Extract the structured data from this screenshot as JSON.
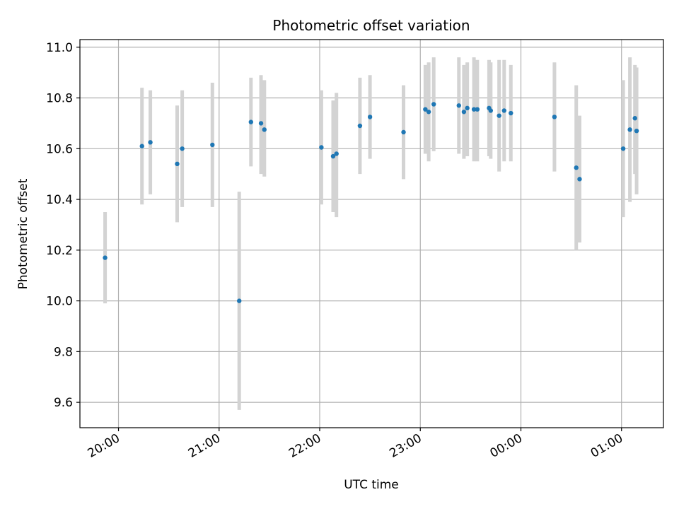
{
  "chart_data": {
    "type": "scatter",
    "title": "Photometric offset variation",
    "xlabel": "UTC time",
    "ylabel": "Photometric offset",
    "x_axis_kind": "time",
    "xlim": [
      "19:37",
      "01:25"
    ],
    "ylim": [
      9.5,
      11.03
    ],
    "x_ticks": [
      "20:00",
      "21:00",
      "22:00",
      "23:00",
      "00:00",
      "01:00"
    ],
    "y_ticks": [
      "9.6",
      "9.8",
      "10.0",
      "10.2",
      "10.4",
      "10.6",
      "10.8",
      "11.0"
    ],
    "grid": true,
    "legend": "none",
    "colors": {
      "point": "#1f77b4",
      "error_bar": "#d3d3d3",
      "grid": "#b0b0b0"
    },
    "points": [
      {
        "time": "19:52",
        "y": 10.17,
        "ylow": 9.99,
        "yhigh": 10.35
      },
      {
        "time": "20:14",
        "y": 10.61,
        "ylow": 10.38,
        "yhigh": 10.84
      },
      {
        "time": "20:19",
        "y": 10.625,
        "ylow": 10.42,
        "yhigh": 10.83
      },
      {
        "time": "20:35",
        "y": 10.54,
        "ylow": 10.31,
        "yhigh": 10.77
      },
      {
        "time": "20:38",
        "y": 10.6,
        "ylow": 10.37,
        "yhigh": 10.83
      },
      {
        "time": "20:56",
        "y": 10.615,
        "ylow": 10.37,
        "yhigh": 10.86
      },
      {
        "time": "21:12",
        "y": 10.0,
        "ylow": 9.57,
        "yhigh": 10.43
      },
      {
        "time": "21:19",
        "y": 10.705,
        "ylow": 10.53,
        "yhigh": 10.88
      },
      {
        "time": "21:25",
        "y": 10.7,
        "ylow": 10.5,
        "yhigh": 10.89
      },
      {
        "time": "21:27",
        "y": 10.675,
        "ylow": 10.49,
        "yhigh": 10.87
      },
      {
        "time": "22:01",
        "y": 10.605,
        "ylow": 10.38,
        "yhigh": 10.83
      },
      {
        "time": "22:08",
        "y": 10.57,
        "ylow": 10.35,
        "yhigh": 10.79
      },
      {
        "time": "22:10",
        "y": 10.58,
        "ylow": 10.33,
        "yhigh": 10.82
      },
      {
        "time": "22:24",
        "y": 10.69,
        "ylow": 10.5,
        "yhigh": 10.88
      },
      {
        "time": "22:30",
        "y": 10.725,
        "ylow": 10.56,
        "yhigh": 10.89
      },
      {
        "time": "22:50",
        "y": 10.665,
        "ylow": 10.48,
        "yhigh": 10.85
      },
      {
        "time": "23:03",
        "y": 10.755,
        "ylow": 10.58,
        "yhigh": 10.93
      },
      {
        "time": "23:05",
        "y": 10.745,
        "ylow": 10.55,
        "yhigh": 10.94
      },
      {
        "time": "23:08",
        "y": 10.775,
        "ylow": 10.59,
        "yhigh": 10.96
      },
      {
        "time": "23:23",
        "y": 10.77,
        "ylow": 10.58,
        "yhigh": 10.96
      },
      {
        "time": "23:26",
        "y": 10.745,
        "ylow": 10.56,
        "yhigh": 10.93
      },
      {
        "time": "23:28",
        "y": 10.76,
        "ylow": 10.57,
        "yhigh": 10.94
      },
      {
        "time": "23:32",
        "y": 10.755,
        "ylow": 10.55,
        "yhigh": 10.96
      },
      {
        "time": "23:34",
        "y": 10.755,
        "ylow": 10.55,
        "yhigh": 10.95
      },
      {
        "time": "23:41",
        "y": 10.76,
        "ylow": 10.57,
        "yhigh": 10.95
      },
      {
        "time": "23:42",
        "y": 10.75,
        "ylow": 10.56,
        "yhigh": 10.94
      },
      {
        "time": "23:47",
        "y": 10.73,
        "ylow": 10.51,
        "yhigh": 10.95
      },
      {
        "time": "23:50",
        "y": 10.75,
        "ylow": 10.55,
        "yhigh": 10.95
      },
      {
        "time": "23:54",
        "y": 10.74,
        "ylow": 10.55,
        "yhigh": 10.93
      },
      {
        "time": "00:20",
        "y": 10.725,
        "ylow": 10.51,
        "yhigh": 10.94
      },
      {
        "time": "00:33",
        "y": 10.525,
        "ylow": 10.2,
        "yhigh": 10.85
      },
      {
        "time": "00:35",
        "y": 10.48,
        "ylow": 10.23,
        "yhigh": 10.73
      },
      {
        "time": "01:01",
        "y": 10.6,
        "ylow": 10.33,
        "yhigh": 10.87
      },
      {
        "time": "01:05",
        "y": 10.675,
        "ylow": 10.39,
        "yhigh": 10.96
      },
      {
        "time": "01:08",
        "y": 10.72,
        "ylow": 10.5,
        "yhigh": 10.93
      },
      {
        "time": "01:09",
        "y": 10.67,
        "ylow": 10.42,
        "yhigh": 10.92
      }
    ]
  }
}
